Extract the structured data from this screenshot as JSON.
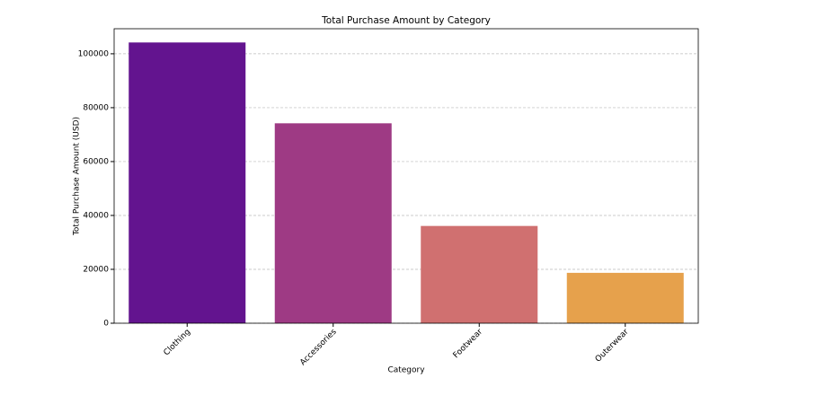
{
  "chart_data": {
    "type": "bar",
    "title": "Total Purchase Amount by Category",
    "x_label": "Category",
    "y_label": "Total Purchase Amount (USD)",
    "categories": [
      "Clothing",
      "Accessories",
      "Footwear",
      "Outerwear"
    ],
    "values": [
      104200,
      74200,
      36100,
      18700
    ],
    "colors": [
      "#63148f",
      "#9e3a84",
      "#d07070",
      "#e6a14c"
    ],
    "ylim": [
      0,
      109300
    ],
    "yticks": [
      0,
      20000,
      40000,
      60000,
      80000,
      100000
    ],
    "grid": true
  }
}
